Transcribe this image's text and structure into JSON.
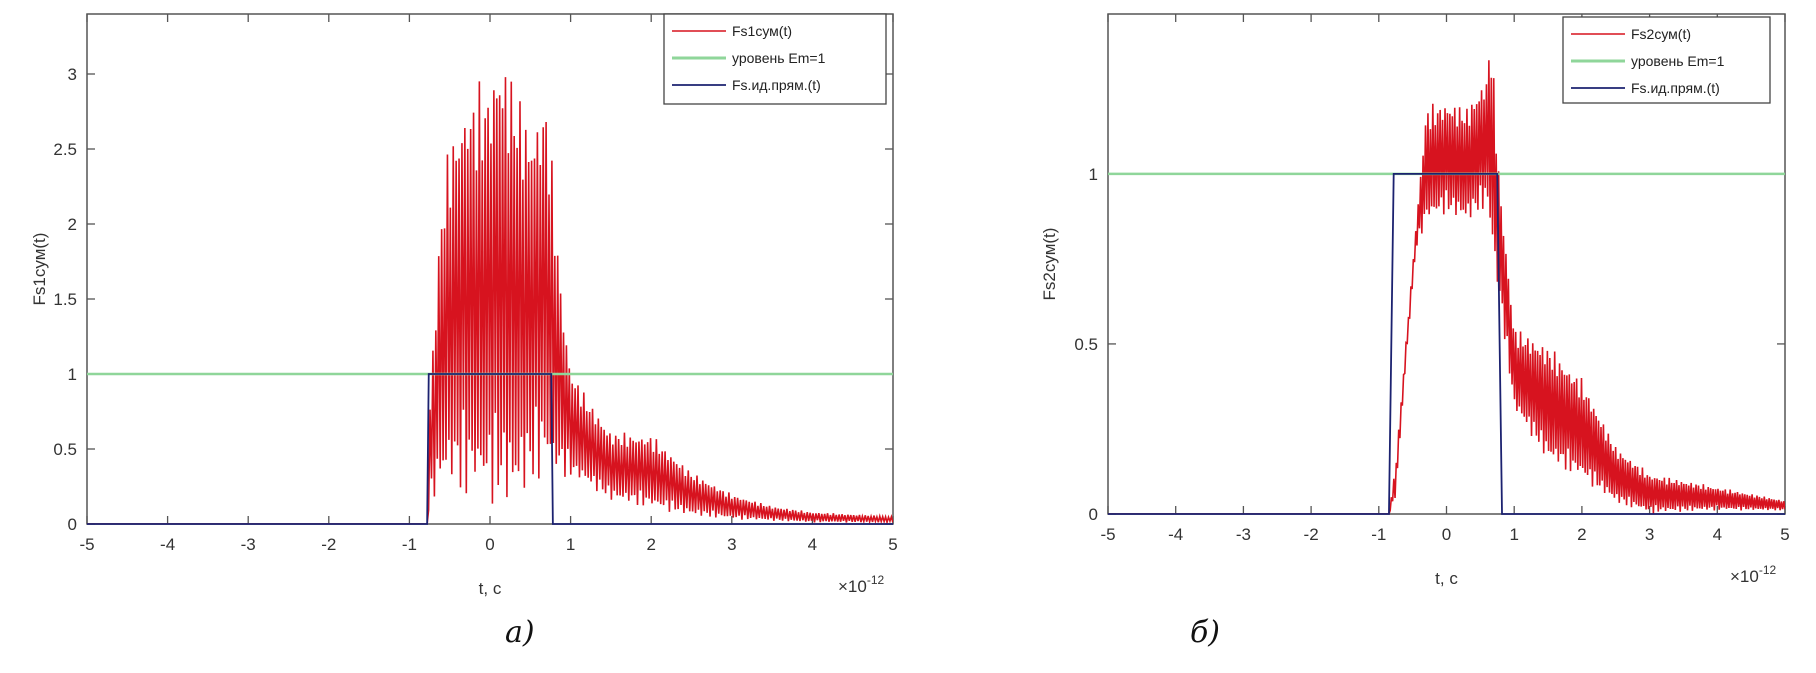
{
  "chart_data": [
    {
      "type": "line",
      "panel_caption": "а)",
      "xlabel": "t, c",
      "x_exponent": "×10",
      "x_exponent_power": "-12",
      "ylabel": "Fs1сум(t)",
      "xlim": [
        -5,
        5
      ],
      "ylim": [
        0,
        3.4
      ],
      "xticks": [
        -5,
        -4,
        -3,
        -2,
        -1,
        0,
        1,
        2,
        3,
        4,
        5
      ],
      "yticks": [
        0,
        0.5,
        1,
        1.5,
        2,
        2.5,
        3
      ],
      "grid": false,
      "legend_placement": "top-right",
      "legend": [
        "Fs1сум(t)",
        "уровень Em=1",
        "Fs.ид.прям.(t)"
      ],
      "colors": {
        "signal": "#d7131f",
        "level": "#8fd69a",
        "ideal": "#1c2270"
      },
      "series": [
        {
          "name": "Fs1сум(t)",
          "style": "oscillating",
          "x": [
            -0.78,
            -0.75,
            -0.7,
            -0.6,
            -0.5,
            -0.3,
            0,
            0.1,
            0.3,
            0.5,
            0.7,
            0.8,
            0.9,
            1.0,
            1.2,
            1.5,
            2.0,
            2.5,
            3.0,
            3.5,
            4.0,
            5.0
          ],
          "upper": [
            0,
            0.8,
            1.3,
            2.2,
            2.6,
            2.9,
            3.0,
            3.25,
            3.0,
            2.7,
            2.9,
            2.2,
            1.5,
            1.05,
            0.85,
            0.62,
            0.6,
            0.35,
            0.2,
            0.12,
            0.08,
            0.05
          ],
          "lower": [
            0,
            0.1,
            0.15,
            0.2,
            0.2,
            0.15,
            0.1,
            0.08,
            0.05,
            0.2,
            0.3,
            0.25,
            0.3,
            0.3,
            0.25,
            0.15,
            0.1,
            0.05,
            0.03,
            0.02,
            0.01,
            0.01
          ]
        },
        {
          "name": "уровень Em=1",
          "x": [
            -5,
            5
          ],
          "y": [
            1,
            1
          ]
        },
        {
          "name": "Fs.ид.прям.(t)",
          "x": [
            -5,
            -0.78,
            -0.76,
            0.76,
            0.78,
            5
          ],
          "y": [
            0,
            0,
            1,
            1,
            0,
            0
          ]
        }
      ]
    },
    {
      "type": "line",
      "panel_caption": "б)",
      "xlabel": "t, c",
      "x_exponent": "×10",
      "x_exponent_power": "-12",
      "ylabel": "Fs2сум(t)",
      "xlim": [
        -5,
        5
      ],
      "ylim": [
        0,
        1.47
      ],
      "xticks": [
        -5,
        -4,
        -3,
        -2,
        -1,
        0,
        1,
        2,
        3,
        4,
        5
      ],
      "yticks": [
        0,
        0.5,
        1
      ],
      "grid": false,
      "legend_placement": "top-right",
      "legend": [
        "Fs2сум(t)",
        "уровень Em=1",
        "Fs.ид.прям.(t)"
      ],
      "colors": {
        "signal": "#d7131f",
        "level": "#8fd69a",
        "ideal": "#1c2270"
      },
      "series": [
        {
          "name": "Fs2сум(t)",
          "style": "oscillating",
          "x": [
            -0.85,
            -0.75,
            -0.6,
            -0.45,
            -0.3,
            0,
            0.3,
            0.6,
            0.65,
            0.75,
            0.8,
            1.0,
            1.5,
            2.0,
            2.5,
            3.0,
            4.0,
            5.0
          ],
          "upper": [
            0,
            0.15,
            0.5,
            0.85,
            1.2,
            1.22,
            1.2,
            1.3,
            1.45,
            1.1,
            0.95,
            0.55,
            0.5,
            0.4,
            0.2,
            0.12,
            0.08,
            0.04
          ],
          "lower": [
            0,
            0.05,
            0.45,
            0.78,
            0.85,
            0.88,
            0.85,
            0.9,
            0.8,
            0.65,
            0.6,
            0.3,
            0.15,
            0.1,
            0.03,
            0.0,
            0.01,
            0.01
          ]
        },
        {
          "name": "уровень Em=1",
          "x": [
            -5,
            5
          ],
          "y": [
            1,
            1
          ]
        },
        {
          "name": "Fs.ид.прям.(t)",
          "x": [
            -5,
            -0.85,
            -0.78,
            0.75,
            0.82,
            5
          ],
          "y": [
            0,
            0,
            1,
            1,
            0,
            0
          ]
        }
      ]
    }
  ]
}
